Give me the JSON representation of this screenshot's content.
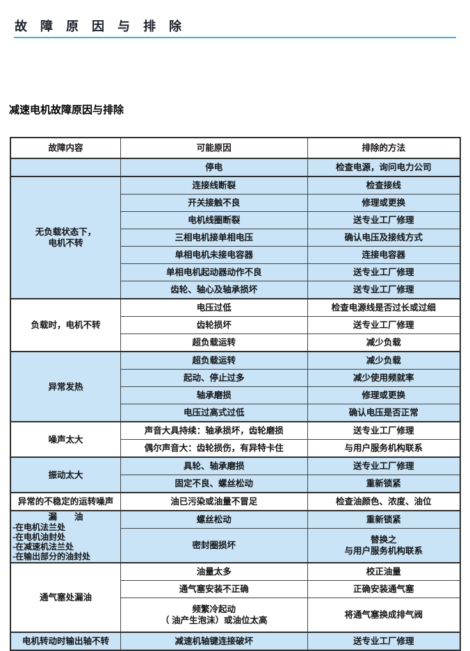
{
  "page": {
    "title": "故 障 原 因 与 排 除",
    "subtitle": "减速电机故障原因与排除"
  },
  "colors": {
    "accent_underline": "#35b4e5",
    "row_highlight": "#c8e4f6",
    "table_border": "#2e2e2e"
  },
  "table": {
    "headers": [
      "故障内容",
      "可能原因",
      "排除的方法"
    ],
    "sections": [
      {
        "tone": "blue",
        "fault": "",
        "rows": [
          {
            "cause": "停电",
            "remedy": "检查电源，询问电力公司"
          }
        ]
      },
      {
        "tone": "blue",
        "fault": "无负载状态下，\n电机不转",
        "rows": [
          {
            "cause": "连接线断裂",
            "remedy": "检查接线"
          },
          {
            "cause": "开关接触不良",
            "remedy": "修理或更换"
          },
          {
            "cause": "电机线圈断裂",
            "remedy": "送专业工厂修理"
          },
          {
            "cause": "三相电机接单相电压",
            "remedy": "确认电压及接线方式"
          },
          {
            "cause": "单相电机未接电容器",
            "remedy": "连接电容器"
          },
          {
            "cause": "单相电机起动器动作不良",
            "remedy": "送专业工厂修理"
          },
          {
            "cause": "齿轮、轴心及轴承损坏",
            "remedy": "送专业工厂修理"
          }
        ]
      },
      {
        "tone": "white",
        "fault": "负载时，电机不转",
        "rows": [
          {
            "cause": "电压过低",
            "remedy": "检查电源线是否过长或过细"
          },
          {
            "cause": "齿轮损坏",
            "remedy": "送专业工厂修理"
          },
          {
            "cause": "超负载运转",
            "remedy": "减少负载"
          }
        ]
      },
      {
        "tone": "blue",
        "fault": "异常发热",
        "rows": [
          {
            "cause": "超负载运转",
            "remedy": "减少负载"
          },
          {
            "cause": "起动、停止过多",
            "remedy": "减少使用频就率"
          },
          {
            "cause": "轴承磨损",
            "remedy": "修理或更换"
          },
          {
            "cause": "电压过高式过低",
            "remedy": "确认电压是否正常"
          }
        ]
      },
      {
        "tone": "white",
        "fault": "噪声太大",
        "rows": [
          {
            "cause": "声音大具持续：轴承损坏，齿轮磨损",
            "remedy": "送专业工厂修理"
          },
          {
            "cause": "偶尔声音大：齿轮损伤，有异特卡住",
            "remedy": "与用户服务机构联系"
          }
        ]
      },
      {
        "tone": "blue",
        "fault": "振动太大",
        "rows": [
          {
            "cause": "具轮、轴承磨损",
            "remedy": "送专业工厂修理"
          },
          {
            "cause": "固定不良、螺丝松动",
            "remedy": "重新锁紧"
          }
        ]
      },
      {
        "tone": "white",
        "fault": "异常的不稳定的运转噪声",
        "rows": [
          {
            "cause": "油已污染或油量不冒足",
            "remedy": "检查油颜色、浓度、油位"
          }
        ]
      },
      {
        "tone": "blue",
        "fault_title": "漏　　油",
        "fault_details": [
          "-在电机法兰处",
          "-在电机油封处",
          "-在减速机法兰处",
          "-在输出部分的油封处"
        ],
        "rows": [
          {
            "cause": "螺丝松动",
            "remedy": "重新锁紧"
          },
          {
            "cause": "密封圈损坏",
            "remedy": "替换之\n与用户服务机构联系"
          }
        ]
      },
      {
        "tone": "white",
        "fault": "通气塞处漏油",
        "rows": [
          {
            "cause": "油量太多",
            "remedy": "校正油量"
          },
          {
            "cause": "通气塞安装不正确",
            "remedy": "正确安装通气塞"
          },
          {
            "cause": "频繁冷起动\n（ 油产生泡沫）或油位太高",
            "remedy": "将通气塞换成排气阀"
          }
        ]
      },
      {
        "tone": "blue",
        "fault": "电机转动时输出轴不转",
        "rows": [
          {
            "cause": "减速机轴键连接破坏",
            "remedy": "送专业工厂修理"
          }
        ]
      }
    ]
  }
}
